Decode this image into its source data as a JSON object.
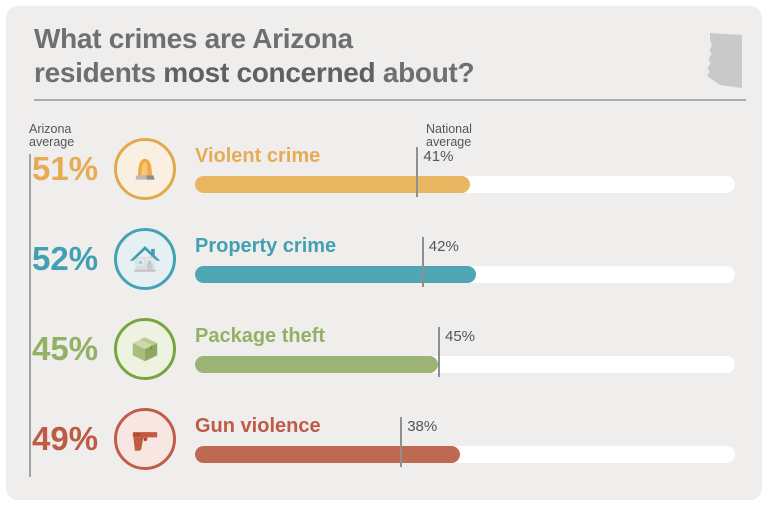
{
  "title": {
    "line1": "What crimes are Arizona",
    "line2_prefix": "residents ",
    "line2_bold": "most concerned",
    "line2_suffix": " about?"
  },
  "labels": {
    "arizona_average_line1": "Arizona",
    "arizona_average_line2": "average",
    "national_average_line1": "National",
    "national_average_line2": "average"
  },
  "chart_data": {
    "type": "bar",
    "orientation": "horizontal",
    "title": "What crimes are Arizona residents most concerned about?",
    "categories": [
      "Violent crime",
      "Property crime",
      "Package theft",
      "Gun violence"
    ],
    "series": [
      {
        "name": "Arizona average",
        "values": [
          51,
          52,
          45,
          49
        ]
      },
      {
        "name": "National average",
        "values": [
          41,
          42,
          45,
          38
        ]
      }
    ],
    "xlim": [
      0,
      100
    ],
    "legend_position": "column-headers",
    "grid": false
  },
  "rows": [
    {
      "label": "Violent crime",
      "az_label": "51%",
      "nat_label": "41%",
      "az_value": 51,
      "nat_value": 41,
      "bar_color": "#e9b662",
      "text_color": "#e7ab55",
      "circle_border": "#e2a850",
      "circle_bg": "#faf0e1",
      "icon": "siren-icon"
    },
    {
      "label": "Property crime",
      "az_label": "52%",
      "nat_label": "42%",
      "az_value": 52,
      "nat_value": 42,
      "bar_color": "#4fa6b5",
      "text_color": "#41a1b2",
      "circle_border": "#43a2b3",
      "circle_bg": "#e6f0f2",
      "icon": "house-icon"
    },
    {
      "label": "Package theft",
      "az_label": "45%",
      "nat_label": "45%",
      "az_value": 45,
      "nat_value": 45,
      "bar_color": "#9cb475",
      "text_color": "#93b164",
      "circle_border": "#78a540",
      "circle_bg": "#eef2e0",
      "icon": "package-icon"
    },
    {
      "label": "Gun violence",
      "az_label": "49%",
      "nat_label": "38%",
      "az_value": 49,
      "nat_value": 38,
      "bar_color": "#c06952",
      "text_color": "#bd5b44",
      "circle_border": "#c05c48",
      "circle_bg": "#f7e6e2",
      "icon": "gun-icon"
    }
  ],
  "colors": {
    "page_bg": "#ffffff",
    "card_bg": "#efeeec",
    "title_text": "#6f6f6f",
    "divider": "#ababab",
    "muted_text": "#55555a",
    "tick_line": "#8f8f8f",
    "bar_track": "#ffffff",
    "state_silhouette": "#c9c9c9"
  },
  "layout": {
    "bar_origin_x": 195,
    "bar_track_width": 540,
    "row_top_start": 138,
    "row_spacing": 90
  }
}
